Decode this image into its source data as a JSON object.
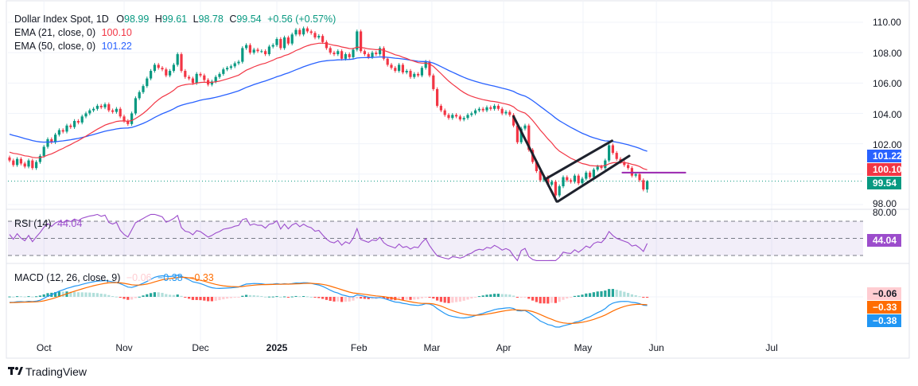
{
  "header": {
    "symbol": "Dollar Index Spot, 1D",
    "open_label": "O",
    "open": "98.99",
    "high_label": "H",
    "high": "99.61",
    "low_label": "L",
    "low": "98.78",
    "close_label": "C",
    "close": "99.54",
    "change": "+0.56 (+0.57%)"
  },
  "ema21": {
    "label": "EMA (21, close, 0)",
    "value": "100.10"
  },
  "ema50": {
    "label": "EMA (50, close, 0)",
    "value": "101.22"
  },
  "rsi": {
    "label": "RSI (14)",
    "value": "44.04",
    "axis_top": "80.00"
  },
  "macd": {
    "label": "MACD (12, 26, close, 9)",
    "hist": "−0.06",
    "macd": "−0.38",
    "signal": "−0.33"
  },
  "price_axis": [
    "110.00",
    "108.00",
    "106.00",
    "104.00",
    "102.00",
    "98.00"
  ],
  "badges": {
    "ema50": "101.22",
    "ema21": "100.10",
    "last": "99.54",
    "rsi": "44.04",
    "hist": "−0.06",
    "signal": "−0.33",
    "macd": "−0.38"
  },
  "logo": {
    "text": "TradingView"
  },
  "colors": {
    "up": "#089981",
    "down": "#f23645",
    "ema21": "#f23645",
    "ema50": "#2962ff",
    "rsi": "#9c4dcc",
    "macd": "#2196f3",
    "signal": "#ff6d00",
    "level": "#9c27b0",
    "text": "#131722"
  },
  "chart_data": {
    "type": "candlestick",
    "title": "Dollar Index Spot, 1D",
    "ylim": [
      97.8,
      110.3
    ],
    "y_ticks": [
      98,
      100,
      102,
      104,
      106,
      108,
      110
    ],
    "x_ticks": [
      {
        "label": "Oct",
        "index": 9
      },
      {
        "label": "Nov",
        "index": 30
      },
      {
        "label": "Dec",
        "index": 50
      },
      {
        "label": "2025",
        "index": 70,
        "bold": true
      },
      {
        "label": "Feb",
        "index": 91.5
      },
      {
        "label": "Mar",
        "index": 110.6
      },
      {
        "label": "Apr",
        "index": 129.4
      },
      {
        "label": "May",
        "index": 150.2
      },
      {
        "label": "Jun",
        "index": 169.4
      },
      {
        "label": "Jul",
        "index": 199.6
      }
    ],
    "closes": [
      100.9,
      100.6,
      101.0,
      100.7,
      100.5,
      100.9,
      100.4,
      100.8,
      101.2,
      101.8,
      102.3,
      102.1,
      102.6,
      102.9,
      102.8,
      103.2,
      103.1,
      103.5,
      103.4,
      103.8,
      104.0,
      104.2,
      104.3,
      104.5,
      104.4,
      104.6,
      104.2,
      104.1,
      104.3,
      103.8,
      103.5,
      103.3,
      104.0,
      105.0,
      105.4,
      105.8,
      106.3,
      106.8,
      107.2,
      107.0,
      106.9,
      106.5,
      106.8,
      107.2,
      107.9,
      106.8,
      106.4,
      106.3,
      106.0,
      106.6,
      106.5,
      106.2,
      105.9,
      106.1,
      106.4,
      106.6,
      106.9,
      107.0,
      107.1,
      107.3,
      107.4,
      108.3,
      108.5,
      108.0,
      108.2,
      108.1,
      108.1,
      107.9,
      108.4,
      108.5,
      108.9,
      108.3,
      109.0,
      108.6,
      109.2,
      109.5,
      109.2,
      109.6,
      109.4,
      109.3,
      109.0,
      109.1,
      108.7,
      108.3,
      108.0,
      107.9,
      108.1,
      107.6,
      107.9,
      107.7,
      108.2,
      109.4,
      108.1,
      107.9,
      107.7,
      108.0,
      107.9,
      108.3,
      107.6,
      107.2,
      107.0,
      106.8,
      107.2,
      106.7,
      106.8,
      106.4,
      106.6,
      106.5,
      107.0,
      107.4,
      106.5,
      105.6,
      104.5,
      104.2,
      103.9,
      103.7,
      103.9,
      103.8,
      103.6,
      103.7,
      103.9,
      104.0,
      104.2,
      104.3,
      104.2,
      104.4,
      104.3,
      104.5,
      104.3,
      104.0,
      104.1,
      103.9,
      103.2,
      102.1,
      103.0,
      103.2,
      101.6,
      100.8,
      100.2,
      99.6,
      99.8,
      99.3,
      99.5,
      98.6,
      99.2,
      99.8,
      99.6,
      99.5,
      99.9,
      99.4,
      99.7,
      100.1,
      99.8,
      100.3,
      100.5,
      100.4,
      100.9,
      101.9,
      101.4,
      101.0,
      100.8,
      100.6,
      100.4,
      99.9,
      100.0,
      99.6,
      98.99,
      99.54
    ],
    "last_candle": {
      "open": 98.99,
      "high": 99.61,
      "low": 98.78,
      "close": 99.54
    },
    "ema_seed": {
      "ema21": 101.5,
      "ema50": 102.7
    },
    "ema_last": {
      "ema21": 100.1,
      "ema50": 101.22
    },
    "rsi": {
      "period": 14,
      "last": 44.04,
      "levels": [
        70,
        50,
        30
      ],
      "ylim": [
        20,
        80
      ]
    },
    "macd": {
      "fast": 12,
      "slow": 26,
      "signal": 9,
      "last": {
        "macd": -0.38,
        "signal": -0.33,
        "hist": -0.06
      },
      "seed": {
        "ema12": 100.9,
        "ema26": 101.2,
        "signal": -0.3
      }
    },
    "drawings": [
      {
        "name": "trend-line-drop",
        "from": [
          132,
          103.8
        ],
        "to": [
          143.3,
          98.2
        ]
      },
      {
        "name": "channel-lower",
        "from": [
          143.6,
          98.2
        ],
        "to": [
          162.3,
          101.2
        ]
      },
      {
        "name": "channel-upper",
        "from": [
          140.5,
          99.7
        ],
        "to": [
          157.8,
          102.2
        ]
      },
      {
        "name": "horizontal-level",
        "from": [
          160.5,
          100.1
        ],
        "to": [
          177,
          100.1
        ]
      }
    ]
  }
}
